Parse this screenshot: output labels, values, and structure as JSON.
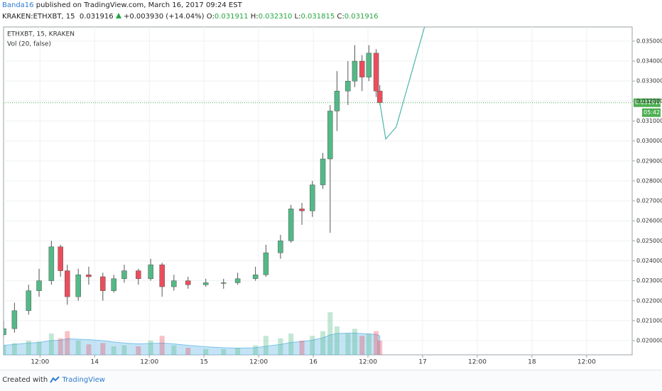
{
  "header": {
    "author": "Banda16",
    "published": "published on TradingView.com, March 16, 2017 09:24 EST",
    "symbol": "KRAKEN:ETHXBT, 15",
    "last": "0.031916",
    "change": "+0.003930 (+14.04%)",
    "o_label": "O:",
    "o": "0.031911",
    "h_label": "H:",
    "h": "0.032310",
    "l_label": "L:",
    "l": "0.031815",
    "c_label": "C:",
    "c": "0.031916"
  },
  "chart_data": {
    "type": "candlestick",
    "title": "ETHXBT, 15, KRAKEN",
    "indicator": "Vol (20, false)",
    "x": [
      28.0,
      30.4,
      33.5,
      35.8,
      38.5,
      40.5,
      42.0,
      44.4,
      46.7,
      49.8,
      52.2,
      54.5,
      57.6,
      60.3,
      62.8,
      65.4,
      68.5,
      72.4,
      76.3,
      79.4,
      83.3,
      85.6,
      88.8,
      91.1,
      93.5,
      95.8,
      98.1,
      99.7,
      101.2,
      103.6,
      105.1,
      106.7,
      108.2,
      109.8,
      110.6
    ],
    "open": [
      0.0203,
      0.0206,
      0.0215,
      0.0225,
      0.023,
      0.0247,
      0.0235,
      0.0222,
      0.0233,
      0.0232,
      0.0225,
      0.0231,
      0.0235,
      0.0231,
      0.0238,
      0.0227,
      0.023,
      0.0228,
      0.0229,
      0.0229,
      0.0231,
      0.0233,
      0.0244,
      0.025,
      0.0266,
      0.0265,
      0.0278,
      0.0291,
      0.0315,
      0.0325,
      0.033,
      0.034,
      0.0332,
      0.0344,
      0.0325
    ],
    "high": [
      0.021,
      0.0219,
      0.0228,
      0.0236,
      0.025,
      0.0248,
      0.0238,
      0.0236,
      0.0237,
      0.0234,
      0.0233,
      0.0238,
      0.0236,
      0.0241,
      0.0239,
      0.0233,
      0.0232,
      0.0231,
      0.0231,
      0.0234,
      0.0237,
      0.0248,
      0.0253,
      0.0268,
      0.0269,
      0.028,
      0.0294,
      0.0318,
      0.0335,
      0.034,
      0.0348,
      0.0343,
      0.0348,
      0.0346,
      0.0328
    ],
    "low": [
      0.0202,
      0.0204,
      0.0213,
      0.0222,
      0.0228,
      0.0232,
      0.0218,
      0.022,
      0.0228,
      0.022,
      0.0224,
      0.0229,
      0.0228,
      0.023,
      0.0222,
      0.0225,
      0.0226,
      0.0227,
      0.0226,
      0.0228,
      0.023,
      0.0232,
      0.0241,
      0.0249,
      0.0258,
      0.0262,
      0.0276,
      0.0254,
      0.0305,
      0.0318,
      0.0327,
      0.0325,
      0.033,
      0.0322,
      0.0318
    ],
    "close": [
      0.0206,
      0.0215,
      0.0225,
      0.023,
      0.0247,
      0.0235,
      0.0222,
      0.0233,
      0.0232,
      0.0225,
      0.0231,
      0.0235,
      0.0231,
      0.0238,
      0.0227,
      0.023,
      0.0228,
      0.0229,
      0.0229,
      0.0231,
      0.0233,
      0.0244,
      0.025,
      0.0266,
      0.0265,
      0.0278,
      0.0291,
      0.0315,
      0.0325,
      0.033,
      0.034,
      0.0332,
      0.0344,
      0.0325,
      0.03192
    ],
    "volume": [
      20,
      25,
      30,
      28,
      45,
      35,
      50,
      30,
      22,
      25,
      18,
      20,
      18,
      30,
      40,
      20,
      15,
      12,
      12,
      15,
      20,
      40,
      35,
      45,
      30,
      40,
      50,
      90,
      60,
      45,
      55,
      40,
      45,
      50,
      30
    ],
    "volume_ma": [
      20,
      22,
      25,
      26,
      30,
      31,
      34,
      33,
      32,
      30,
      27,
      25,
      23,
      24,
      25,
      23,
      20,
      17,
      15,
      14,
      15,
      18,
      22,
      26,
      28,
      31,
      36,
      42,
      45,
      46,
      46,
      45,
      44,
      43,
      40
    ],
    "volume_lim": [
      0,
      120
    ],
    "up_color": "#53b987",
    "down_color": "#eb4d5c",
    "volume_ma_color": "#7cc3ec",
    "projection": {
      "x": [
        110.6,
        111.9,
        114.2,
        120.4
      ],
      "values": [
        0.03192,
        0.0301,
        0.0307,
        0.0357
      ],
      "color": "#4db6ac"
    },
    "last_price": 0.031916,
    "countdown": "05:42",
    "xlim": [
      28,
      166
    ],
    "ylim": [
      0.01929,
      0.03571
    ],
    "xticks": [
      {
        "value": 36,
        "label": "12:00"
      },
      {
        "value": 48,
        "label": "14"
      },
      {
        "value": 60,
        "label": "12:00"
      },
      {
        "value": 72,
        "label": "15"
      },
      {
        "value": 84,
        "label": "12:00"
      },
      {
        "value": 96,
        "label": "16"
      },
      {
        "value": 108,
        "label": "12:00"
      },
      {
        "value": 120,
        "label": "17"
      },
      {
        "value": 132,
        "label": "12:00"
      },
      {
        "value": 144,
        "label": "18"
      },
      {
        "value": 156,
        "label": "12:00"
      }
    ],
    "yticks": [
      {
        "value": 0.02,
        "label": "0.020000"
      },
      {
        "value": 0.021,
        "label": "0.021000"
      },
      {
        "value": 0.022,
        "label": "0.022000"
      },
      {
        "value": 0.023,
        "label": "0.023000"
      },
      {
        "value": 0.024,
        "label": "0.024000"
      },
      {
        "value": 0.025,
        "label": "0.025000"
      },
      {
        "value": 0.026,
        "label": "0.026000"
      },
      {
        "value": 0.027,
        "label": "0.027000"
      },
      {
        "value": 0.028,
        "label": "0.028000"
      },
      {
        "value": 0.029,
        "label": "0.029000"
      },
      {
        "value": 0.03,
        "label": "0.030000"
      },
      {
        "value": 0.031,
        "label": "0.031000"
      },
      {
        "value": 0.032,
        "label": "0.032000"
      },
      {
        "value": 0.033,
        "label": "0.033000"
      },
      {
        "value": 0.034,
        "label": "0.034000"
      },
      {
        "value": 0.035,
        "label": "0.035000"
      }
    ],
    "grid": true
  },
  "footer": {
    "created": "Created with",
    "brand": "TradingView"
  }
}
